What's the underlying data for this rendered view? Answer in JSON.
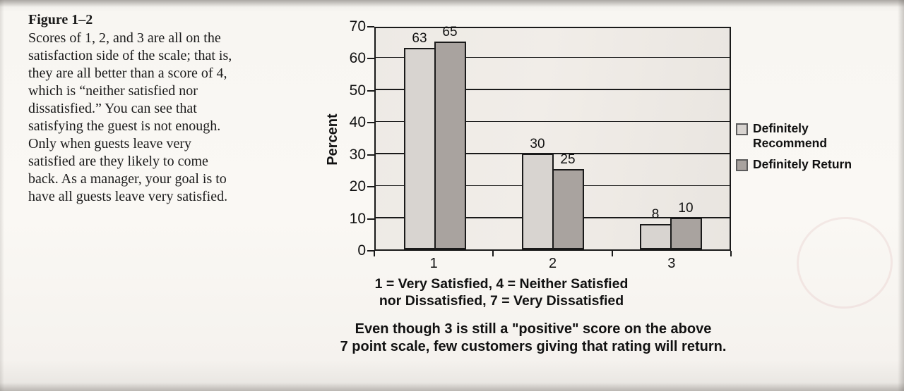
{
  "page": {
    "figure_label": "Figure 1–2",
    "figure_caption": "Scores of 1, 2, and 3 are all on the satisfaction side of the scale; that is, they are all better than a score of 4, which is “neither satisfied nor dissatisfied.” You can see that satisfying the guest is not enough. Only when guests leave very satisfied are they likely to come back. As a manager, your goal is to have all guests leave very satisfied."
  },
  "chart_data": {
    "type": "bar",
    "title": "",
    "categories": [
      "1",
      "2",
      "3"
    ],
    "series": [
      {
        "name": "Definitely Recommend",
        "values": [
          63,
          30,
          8
        ],
        "color": "#d8d4d0"
      },
      {
        "name": "Definitely Return",
        "values": [
          65,
          25,
          10
        ],
        "color": "#a9a39f"
      }
    ],
    "ylabel": "Percent",
    "xlabel": "",
    "ylim": [
      0,
      70
    ],
    "yticks": [
      0,
      10,
      20,
      30,
      40,
      50,
      60,
      70
    ],
    "grid": true,
    "legend_position": "right",
    "value_labels": true,
    "xaxis_caption_line1": "1 = Very Satisfied, 4 = Neither Satisfied",
    "xaxis_caption_line2": "nor Dissatisfied, 7 = Very Dissatisfied",
    "note_line1": "Even though 3 is still a \"positive\" score on the above",
    "note_line2": "7 point scale, few customers giving that rating will return."
  }
}
